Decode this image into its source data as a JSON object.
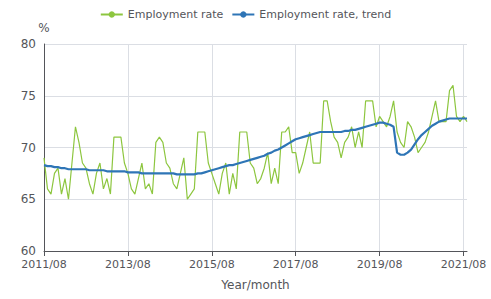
{
  "chart_data": {
    "type": "line",
    "xlabel": "Year/month",
    "ylabel": "%",
    "categories": [
      "2011/08",
      null,
      null,
      null,
      null,
      null,
      null,
      null,
      null,
      null,
      null,
      null,
      null,
      null,
      null,
      null,
      null,
      null,
      null,
      null,
      null,
      null,
      null,
      null,
      "2013/08",
      null,
      null,
      null,
      null,
      null,
      null,
      null,
      null,
      null,
      null,
      null,
      null,
      null,
      null,
      null,
      null,
      null,
      null,
      null,
      null,
      null,
      null,
      null,
      "2015/08",
      null,
      null,
      null,
      null,
      null,
      null,
      null,
      null,
      null,
      null,
      null,
      null,
      null,
      null,
      null,
      null,
      null,
      null,
      null,
      null,
      null,
      null,
      null,
      "2017/08",
      null,
      null,
      null,
      null,
      null,
      null,
      null,
      null,
      null,
      null,
      null,
      null,
      null,
      null,
      null,
      null,
      null,
      null,
      null,
      null,
      null,
      null,
      null,
      "2019/08",
      null,
      null,
      null,
      null,
      null,
      null,
      null,
      null,
      null,
      null,
      null,
      null,
      null,
      null,
      null,
      null,
      null,
      null,
      null,
      null,
      null,
      null,
      null,
      "2021/08",
      null
    ],
    "series": [
      {
        "name": "Employment rate",
        "color": "#8dc63f",
        "values": [
          69.0,
          66.0,
          65.5,
          67.5,
          68.0,
          65.5,
          67.0,
          65.0,
          68.5,
          72.0,
          70.5,
          68.5,
          68.0,
          66.5,
          65.5,
          67.5,
          68.5,
          66.0,
          67.0,
          65.5,
          71.0,
          71.0,
          71.0,
          68.5,
          67.5,
          66.0,
          65.5,
          67.0,
          68.5,
          66.0,
          66.5,
          65.5,
          70.5,
          71.0,
          70.5,
          68.5,
          68.0,
          66.5,
          66.0,
          67.5,
          69.0,
          65.0,
          65.5,
          66.0,
          71.5,
          71.5,
          71.5,
          68.5,
          67.5,
          66.5,
          65.5,
          67.5,
          68.5,
          65.5,
          67.5,
          66.0,
          71.5,
          71.5,
          71.5,
          68.5,
          68.0,
          66.5,
          67.0,
          68.0,
          69.5,
          66.5,
          68.0,
          66.5,
          71.5,
          71.5,
          72.0,
          69.5,
          69.5,
          67.5,
          68.5,
          70.0,
          71.5,
          68.5,
          68.5,
          68.5,
          74.5,
          74.5,
          72.5,
          71.0,
          70.5,
          69.0,
          70.5,
          71.0,
          72.0,
          70.0,
          71.5,
          70.0,
          74.5,
          74.5,
          74.5,
          72.0,
          73.0,
          72.5,
          72.0,
          73.0,
          74.5,
          71.5,
          70.5,
          70.0,
          72.5,
          72.0,
          71.0,
          69.5,
          70.0,
          70.5,
          71.5,
          73.0,
          74.5,
          72.5,
          72.5,
          72.5,
          75.5,
          76.0,
          73.0,
          72.5,
          73.0,
          72.5
        ]
      },
      {
        "name": "Employment rate, trend",
        "color": "#2e75b6",
        "values": [
          68.3,
          68.2,
          68.2,
          68.1,
          68.1,
          68.0,
          68.0,
          67.9,
          67.9,
          67.9,
          67.9,
          67.9,
          67.9,
          67.8,
          67.8,
          67.8,
          67.8,
          67.8,
          67.7,
          67.7,
          67.7,
          67.7,
          67.7,
          67.7,
          67.6,
          67.6,
          67.6,
          67.6,
          67.5,
          67.5,
          67.5,
          67.5,
          67.5,
          67.5,
          67.5,
          67.5,
          67.5,
          67.5,
          67.4,
          67.4,
          67.4,
          67.4,
          67.4,
          67.4,
          67.5,
          67.5,
          67.6,
          67.7,
          67.8,
          67.9,
          68.0,
          68.1,
          68.2,
          68.3,
          68.3,
          68.4,
          68.5,
          68.6,
          68.7,
          68.8,
          68.9,
          69.0,
          69.1,
          69.2,
          69.4,
          69.5,
          69.7,
          69.8,
          70.0,
          70.2,
          70.4,
          70.6,
          70.8,
          70.9,
          71.0,
          71.1,
          71.2,
          71.3,
          71.4,
          71.5,
          71.5,
          71.5,
          71.5,
          71.5,
          71.5,
          71.5,
          71.6,
          71.6,
          71.7,
          71.7,
          71.8,
          71.9,
          72.0,
          72.1,
          72.2,
          72.3,
          72.4,
          72.4,
          72.3,
          72.2,
          72.0,
          69.5,
          69.3,
          69.3,
          69.5,
          69.8,
          70.3,
          70.8,
          71.2,
          71.5,
          71.8,
          72.1,
          72.3,
          72.5,
          72.6,
          72.7,
          72.8,
          72.8,
          72.8,
          72.8,
          72.8,
          72.8
        ]
      }
    ],
    "ylim": [
      60,
      80
    ],
    "yticks": [
      60,
      65,
      70,
      75,
      80
    ],
    "grid": true,
    "legend": "top"
  }
}
